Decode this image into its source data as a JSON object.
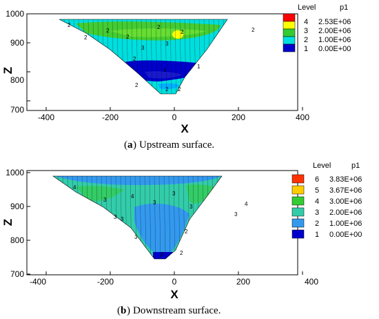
{
  "chart_data": [
    {
      "type": "contour",
      "panel_label": "a",
      "caption": "Upstream surface.",
      "xlabel": "X",
      "ylabel": "Z",
      "xlim": [
        -400,
        450
      ],
      "ylim": [
        700,
        1030
      ],
      "x_ticks": [
        "-400",
        "-200",
        "0",
        "200",
        "400"
      ],
      "y_ticks": [
        "700",
        "800",
        "900",
        "1000"
      ],
      "legend": {
        "title_level": "Level",
        "title_var": "p1",
        "entries": [
          {
            "level": "4",
            "value": "2.53E+06",
            "color": "#ffff00"
          },
          {
            "level": "3",
            "value": "2.00E+06",
            "color": "#33cc33"
          },
          {
            "level": "2",
            "value": "1.00E+06",
            "color": "#00e0e0"
          },
          {
            "level": "1",
            "value": "0.00E+00",
            "color": "#0000cc"
          }
        ],
        "top_color": "#ff0000"
      },
      "contour_labels": [
        "2",
        "2",
        "2",
        "2",
        "2",
        "2",
        "2",
        "3",
        "3",
        "2",
        "1",
        "1",
        "2",
        "2",
        "2"
      ]
    },
    {
      "type": "contour",
      "panel_label": "b",
      "caption": "Downstream surface.",
      "xlabel": "X",
      "ylabel": "Z",
      "xlim": [
        -400,
        450
      ],
      "ylim": [
        700,
        1030
      ],
      "x_ticks": [
        "-400",
        "-200",
        "0",
        "200",
        "400"
      ],
      "y_ticks": [
        "700",
        "800",
        "900",
        "1000"
      ],
      "legend": {
        "title_level": "Level",
        "title_var": "p1",
        "entries": [
          {
            "level": "6",
            "value": "3.83E+06",
            "color": "#ff3300"
          },
          {
            "level": "5",
            "value": "3.67E+06",
            "color": "#ffcc00"
          },
          {
            "level": "4",
            "value": "3.00E+06",
            "color": "#33cc33"
          },
          {
            "level": "3",
            "value": "2.00E+06",
            "color": "#33ccaa"
          },
          {
            "level": "2",
            "value": "1.00E+06",
            "color": "#3399ee"
          },
          {
            "level": "1",
            "value": "0.00E+00",
            "color": "#0000cc"
          }
        ],
        "top_color": "#ff0000"
      },
      "contour_labels": [
        "4",
        "3",
        "3",
        "3",
        "4",
        "3",
        "3",
        "3",
        "3",
        "4",
        "3",
        "2",
        "2",
        "2"
      ]
    }
  ]
}
